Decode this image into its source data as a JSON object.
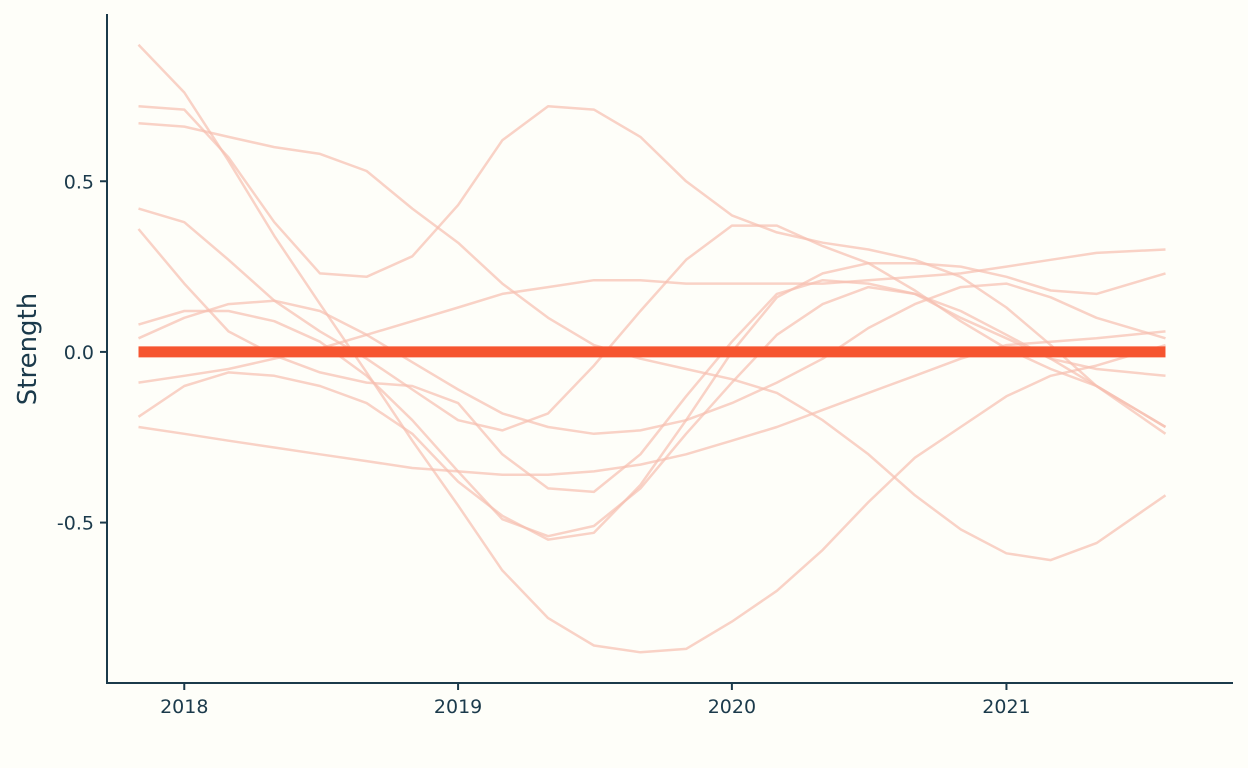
{
  "chart_data": {
    "type": "line",
    "ylabel": "Strength",
    "x_ticks": [
      "2018",
      "2019",
      "2020",
      "2021"
    ],
    "y_ticks": [
      "0.5",
      "0.0",
      "-0.5"
    ],
    "y_tick_values": [
      0.5,
      0.0,
      -0.5
    ],
    "xlim": [
      "2017-09-20",
      "2021-10-30"
    ],
    "ylim": [
      -0.97,
      0.99
    ],
    "grid": false,
    "colors": {
      "thin_lines": "#f7bfb0",
      "zero_line": "#f65530",
      "axis": "#1b3a4b",
      "background": "#fefef9"
    },
    "zero_line": {
      "y": 0
    },
    "series": [
      {
        "x": [
          "2017-11-01",
          "2018-01-01",
          "2018-03-01",
          "2018-05-01",
          "2018-07-01",
          "2018-09-01",
          "2018-11-01",
          "2019-01-01",
          "2019-03-01",
          "2019-05-01",
          "2019-07-01",
          "2019-09-01",
          "2019-11-01",
          "2020-01-01",
          "2020-03-01",
          "2020-05-01",
          "2020-07-01",
          "2020-09-01",
          "2020-11-01",
          "2021-01-01",
          "2021-03-01",
          "2021-05-01",
          "2021-08-01"
        ],
        "values": [
          0.9,
          0.76,
          0.56,
          0.34,
          0.14,
          -0.06,
          -0.26,
          -0.45,
          -0.64,
          -0.78,
          -0.86,
          -0.88,
          -0.87,
          -0.79,
          -0.7,
          -0.58,
          -0.44,
          -0.31,
          -0.22,
          -0.13,
          -0.07,
          -0.04,
          0.02
        ]
      },
      {
        "x": [
          "2017-11-01",
          "2018-01-01",
          "2018-03-01",
          "2018-05-01",
          "2018-07-01",
          "2018-09-01",
          "2018-11-01",
          "2019-01-01",
          "2019-03-01",
          "2019-05-01",
          "2019-07-01",
          "2019-09-01",
          "2019-11-01",
          "2020-01-01",
          "2020-03-01",
          "2020-05-01",
          "2020-07-01",
          "2020-09-01",
          "2020-11-01",
          "2021-01-01",
          "2021-03-01",
          "2021-05-01",
          "2021-08-01"
        ],
        "values": [
          0.72,
          0.71,
          0.57,
          0.38,
          0.23,
          0.22,
          0.28,
          0.43,
          0.62,
          0.72,
          0.71,
          0.63,
          0.5,
          0.4,
          0.35,
          0.32,
          0.3,
          0.27,
          0.22,
          0.13,
          0.02,
          -0.1,
          -0.24
        ]
      },
      {
        "x": [
          "2017-11-01",
          "2018-01-01",
          "2018-03-01",
          "2018-05-01",
          "2018-07-01",
          "2018-09-01",
          "2018-11-01",
          "2019-01-01",
          "2019-03-01",
          "2019-05-01",
          "2019-07-01",
          "2019-09-01",
          "2019-11-01",
          "2020-01-01",
          "2020-03-01",
          "2020-05-01",
          "2020-07-01",
          "2020-09-01",
          "2020-11-01",
          "2021-01-01",
          "2021-03-01",
          "2021-05-01",
          "2021-08-01"
        ],
        "values": [
          0.67,
          0.66,
          0.63,
          0.6,
          0.58,
          0.53,
          0.42,
          0.32,
          0.2,
          0.1,
          0.02,
          -0.02,
          -0.05,
          -0.08,
          -0.12,
          -0.2,
          -0.3,
          -0.42,
          -0.52,
          -0.59,
          -0.61,
          -0.56,
          -0.42
        ]
      },
      {
        "x": [
          "2017-11-01",
          "2018-01-01",
          "2018-03-01",
          "2018-05-01",
          "2018-07-01",
          "2018-09-01",
          "2018-11-01",
          "2019-01-01",
          "2019-03-01",
          "2019-05-01",
          "2019-07-01",
          "2019-09-01",
          "2019-11-01",
          "2020-01-01",
          "2020-03-01",
          "2020-05-01",
          "2020-07-01",
          "2020-09-01",
          "2020-11-01",
          "2021-01-01",
          "2021-03-01",
          "2021-05-01",
          "2021-08-01"
        ],
        "values": [
          0.42,
          0.38,
          0.27,
          0.15,
          0.06,
          -0.02,
          -0.11,
          -0.2,
          -0.23,
          -0.18,
          -0.04,
          0.12,
          0.27,
          0.37,
          0.37,
          0.31,
          0.26,
          0.18,
          0.09,
          0.01,
          -0.05,
          -0.1,
          -0.22
        ]
      },
      {
        "x": [
          "2017-11-01",
          "2018-01-01",
          "2018-03-01",
          "2018-05-01",
          "2018-07-01",
          "2018-09-01",
          "2018-11-01",
          "2019-01-01",
          "2019-03-01",
          "2019-05-01",
          "2019-07-01",
          "2019-09-01",
          "2019-11-01",
          "2020-01-01",
          "2020-03-01",
          "2020-05-01",
          "2020-07-01",
          "2020-09-01",
          "2020-11-01",
          "2021-01-01",
          "2021-03-01",
          "2021-05-01",
          "2021-08-01"
        ],
        "values": [
          0.36,
          0.2,
          0.06,
          -0.01,
          -0.06,
          -0.09,
          -0.1,
          -0.15,
          -0.3,
          -0.4,
          -0.41,
          -0.3,
          -0.13,
          0.03,
          0.17,
          0.21,
          0.2,
          0.17,
          0.1,
          0.04,
          -0.02,
          -0.1,
          -0.22
        ]
      },
      {
        "x": [
          "2017-11-01",
          "2018-01-01",
          "2018-03-01",
          "2018-05-01",
          "2018-07-01",
          "2018-09-01",
          "2018-11-01",
          "2019-01-01",
          "2019-03-01",
          "2019-05-01",
          "2019-07-01",
          "2019-09-01",
          "2019-11-01",
          "2020-01-01",
          "2020-03-01",
          "2020-05-01",
          "2020-07-01",
          "2020-09-01",
          "2020-11-01",
          "2021-01-01",
          "2021-03-01",
          "2021-05-01",
          "2021-08-01"
        ],
        "values": [
          0.08,
          0.12,
          0.12,
          0.09,
          0.03,
          -0.07,
          -0.2,
          -0.35,
          -0.49,
          -0.54,
          -0.51,
          -0.4,
          -0.24,
          -0.09,
          0.05,
          0.14,
          0.19,
          0.17,
          0.12,
          0.05,
          -0.02,
          -0.05,
          -0.07
        ]
      },
      {
        "x": [
          "2017-11-01",
          "2018-01-01",
          "2018-03-01",
          "2018-05-01",
          "2018-07-01",
          "2018-09-01",
          "2018-11-01",
          "2019-01-01",
          "2019-03-01",
          "2019-05-01",
          "2019-07-01",
          "2019-09-01",
          "2019-11-01",
          "2020-01-01",
          "2020-03-01",
          "2020-05-01",
          "2020-07-01",
          "2020-09-01",
          "2020-11-01",
          "2021-01-01",
          "2021-03-01",
          "2021-05-01",
          "2021-08-01"
        ],
        "values": [
          0.04,
          0.1,
          0.14,
          0.15,
          0.12,
          0.05,
          -0.03,
          -0.11,
          -0.18,
          -0.22,
          -0.24,
          -0.23,
          -0.2,
          -0.15,
          -0.09,
          -0.02,
          0.07,
          0.14,
          0.19,
          0.2,
          0.16,
          0.1,
          0.04
        ]
      },
      {
        "x": [
          "2017-11-01",
          "2018-01-01",
          "2018-03-01",
          "2018-05-01",
          "2018-07-01",
          "2018-09-01",
          "2018-11-01",
          "2019-01-01",
          "2019-03-01",
          "2019-05-01",
          "2019-07-01",
          "2019-09-01",
          "2019-11-01",
          "2020-01-01",
          "2020-03-01",
          "2020-05-01",
          "2020-07-01",
          "2020-09-01",
          "2020-11-01",
          "2021-01-01",
          "2021-03-01",
          "2021-05-01",
          "2021-08-01"
        ],
        "values": [
          -0.09,
          -0.07,
          -0.05,
          -0.02,
          0.01,
          0.05,
          0.09,
          0.13,
          0.17,
          0.19,
          0.21,
          0.21,
          0.2,
          0.2,
          0.2,
          0.2,
          0.21,
          0.22,
          0.23,
          0.25,
          0.27,
          0.29,
          0.3
        ]
      },
      {
        "x": [
          "2017-11-01",
          "2018-01-01",
          "2018-03-01",
          "2018-05-01",
          "2018-07-01",
          "2018-09-01",
          "2018-11-01",
          "2019-01-01",
          "2019-03-01",
          "2019-05-01",
          "2019-07-01",
          "2019-09-01",
          "2019-11-01",
          "2020-01-01",
          "2020-03-01",
          "2020-05-01",
          "2020-07-01",
          "2020-09-01",
          "2020-11-01",
          "2021-01-01",
          "2021-03-01",
          "2021-05-01",
          "2021-08-01"
        ],
        "values": [
          -0.19,
          -0.1,
          -0.06,
          -0.07,
          -0.1,
          -0.15,
          -0.24,
          -0.38,
          -0.48,
          -0.55,
          -0.53,
          -0.39,
          -0.2,
          0.0,
          0.16,
          0.23,
          0.26,
          0.26,
          0.25,
          0.22,
          0.18,
          0.17,
          0.23
        ]
      },
      {
        "x": [
          "2017-11-01",
          "2018-01-01",
          "2018-03-01",
          "2018-05-01",
          "2018-07-01",
          "2018-09-01",
          "2018-11-01",
          "2019-01-01",
          "2019-03-01",
          "2019-05-01",
          "2019-07-01",
          "2019-09-01",
          "2019-11-01",
          "2020-01-01",
          "2020-03-01",
          "2020-05-01",
          "2020-07-01",
          "2020-09-01",
          "2020-11-01",
          "2021-01-01",
          "2021-03-01",
          "2021-05-01",
          "2021-08-01"
        ],
        "values": [
          -0.22,
          -0.24,
          -0.26,
          -0.28,
          -0.3,
          -0.32,
          -0.34,
          -0.35,
          -0.36,
          -0.36,
          -0.35,
          -0.33,
          -0.3,
          -0.26,
          -0.22,
          -0.17,
          -0.12,
          -0.07,
          -0.02,
          0.02,
          0.03,
          0.04,
          0.06
        ]
      }
    ]
  }
}
